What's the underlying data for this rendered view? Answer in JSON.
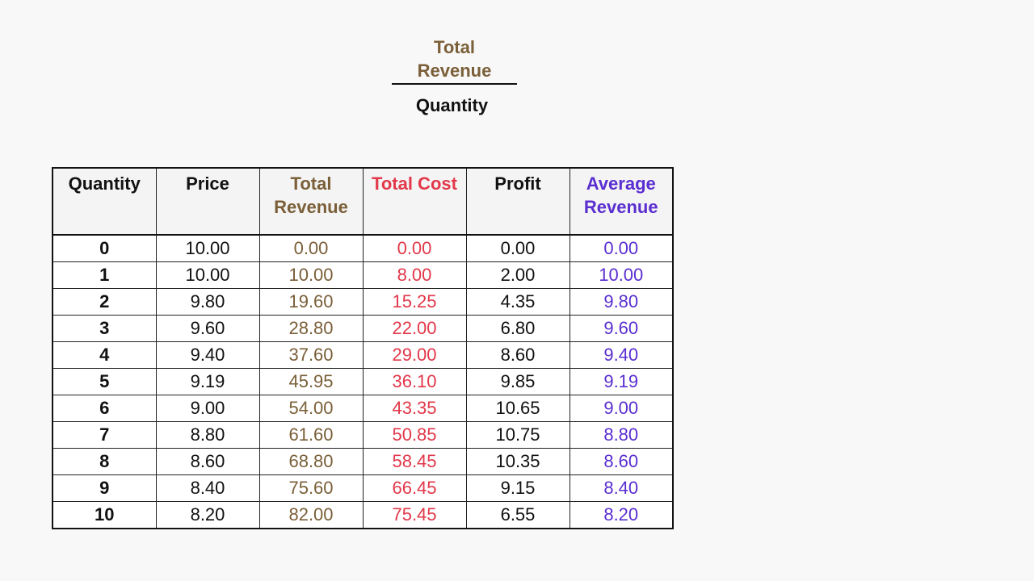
{
  "formula": {
    "numerator": "Total Revenue",
    "numerator_line1": "Total",
    "numerator_line2": "Revenue",
    "denominator": "Quantity"
  },
  "colors": {
    "revenue": "#7a5f38",
    "cost": "#d93a45",
    "profit": "#111111",
    "average": "#5a2ed0",
    "text": "#111111"
  },
  "chart_data": {
    "type": "table",
    "columns": [
      {
        "key": "quantity",
        "label": "Quantity",
        "label_lines": [
          "Quantity"
        ],
        "color": "#111111"
      },
      {
        "key": "price",
        "label": "Price",
        "label_lines": [
          "Price"
        ],
        "color": "#111111"
      },
      {
        "key": "total_revenue",
        "label": "Total Revenue",
        "label_lines": [
          "Total",
          "Revenue"
        ],
        "color": "#7a5f38"
      },
      {
        "key": "total_cost",
        "label": "Total Cost",
        "label_lines": [
          "Total Cost"
        ],
        "color": "#e2384a"
      },
      {
        "key": "profit",
        "label": "Profit",
        "label_lines": [
          "Profit"
        ],
        "color": "#111111"
      },
      {
        "key": "average_revenue",
        "label": "Average Revenue",
        "label_lines": [
          "Average",
          "Revenue"
        ],
        "color": "#5a2ed0"
      }
    ],
    "rows": [
      [
        "0",
        "10.00",
        "0.00",
        "0.00",
        "0.00",
        "0.00"
      ],
      [
        "1",
        "10.00",
        "10.00",
        "8.00",
        "2.00",
        "10.00"
      ],
      [
        "2",
        "9.80",
        "19.60",
        "15.25",
        "4.35",
        "9.80"
      ],
      [
        "3",
        "9.60",
        "28.80",
        "22.00",
        "6.80",
        "9.60"
      ],
      [
        "4",
        "9.40",
        "37.60",
        "29.00",
        "8.60",
        "9.40"
      ],
      [
        "5",
        "9.19",
        "45.95",
        "36.10",
        "9.85",
        "9.19"
      ],
      [
        "6",
        "9.00",
        "54.00",
        "43.35",
        "10.65",
        "9.00"
      ],
      [
        "7",
        "8.80",
        "61.60",
        "50.85",
        "10.75",
        "8.80"
      ],
      [
        "8",
        "8.60",
        "68.80",
        "58.45",
        "10.35",
        "8.60"
      ],
      [
        "9",
        "8.40",
        "75.60",
        "66.45",
        "9.15",
        "8.40"
      ],
      [
        "10",
        "8.20",
        "82.00",
        "75.45",
        "6.55",
        "8.20"
      ]
    ]
  }
}
